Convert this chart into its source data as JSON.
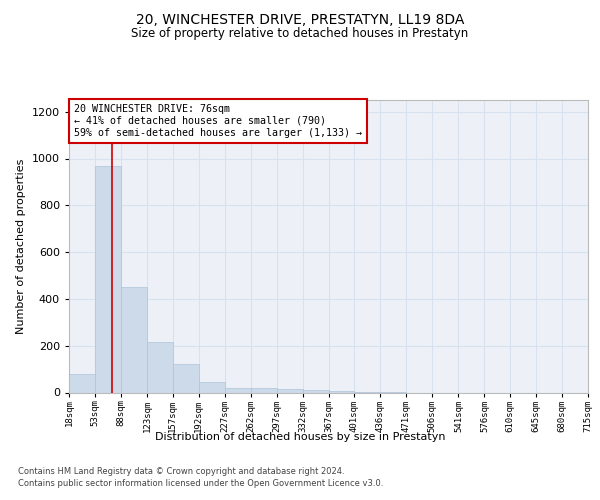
{
  "title": "20, WINCHESTER DRIVE, PRESTATYN, LL19 8DA",
  "subtitle": "Size of property relative to detached houses in Prestatyn",
  "xlabel": "Distribution of detached houses by size in Prestatyn",
  "ylabel": "Number of detached properties",
  "footer_line1": "Contains HM Land Registry data © Crown copyright and database right 2024.",
  "footer_line2": "Contains public sector information licensed under the Open Government Licence v3.0.",
  "bar_color": "#cddaea",
  "bar_edge_color": "#adc4d8",
  "grid_color": "#d8e2ee",
  "annotation_box_color": "#cc0000",
  "annotation_line1": "20 WINCHESTER DRIVE: 76sqm",
  "annotation_line2": "← 41% of detached houses are smaller (790)",
  "annotation_line3": "59% of semi-detached houses are larger (1,133) →",
  "vline_x": 76,
  "vline_color": "#cc0000",
  "bins": [
    18,
    53,
    88,
    123,
    157,
    192,
    227,
    262,
    297,
    332,
    367,
    401,
    436,
    471,
    506,
    541,
    576,
    610,
    645,
    680,
    715
  ],
  "bar_heights": [
    80,
    970,
    450,
    215,
    120,
    45,
    20,
    18,
    15,
    10,
    5,
    2,
    1,
    0,
    0,
    0,
    0,
    0,
    0,
    0
  ],
  "ylim": [
    0,
    1250
  ],
  "yticks": [
    0,
    200,
    400,
    600,
    800,
    1000,
    1200
  ],
  "background_color": "#ffffff",
  "plot_bg_color": "#edf1f7"
}
